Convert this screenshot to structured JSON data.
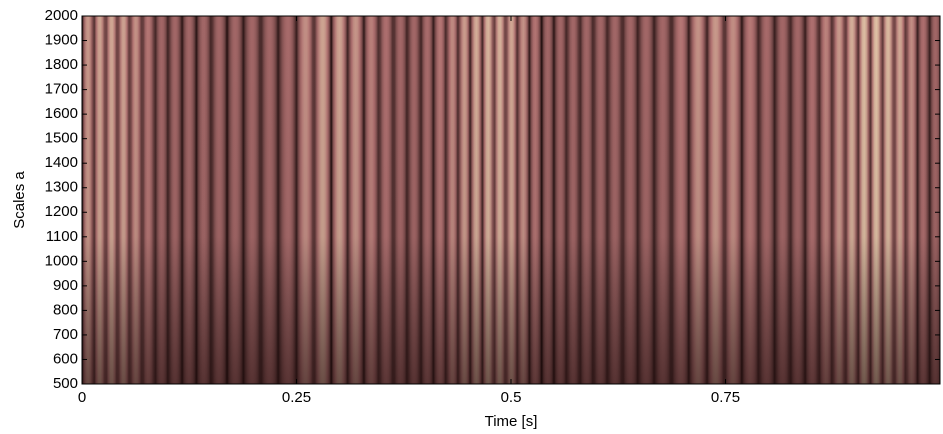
{
  "chart_data": {
    "type": "scalogram",
    "x_label": "Time [s]",
    "y_label": "Scales a",
    "xlim": [
      0,
      1
    ],
    "xticks": [
      0,
      0.25,
      0.5,
      0.75
    ],
    "ylim": [
      500,
      2000
    ],
    "yticks": [
      500,
      600,
      700,
      800,
      900,
      1000,
      1100,
      1200,
      1300,
      1400,
      1500,
      1600,
      1700,
      1800,
      1900,
      2000
    ]
  }
}
